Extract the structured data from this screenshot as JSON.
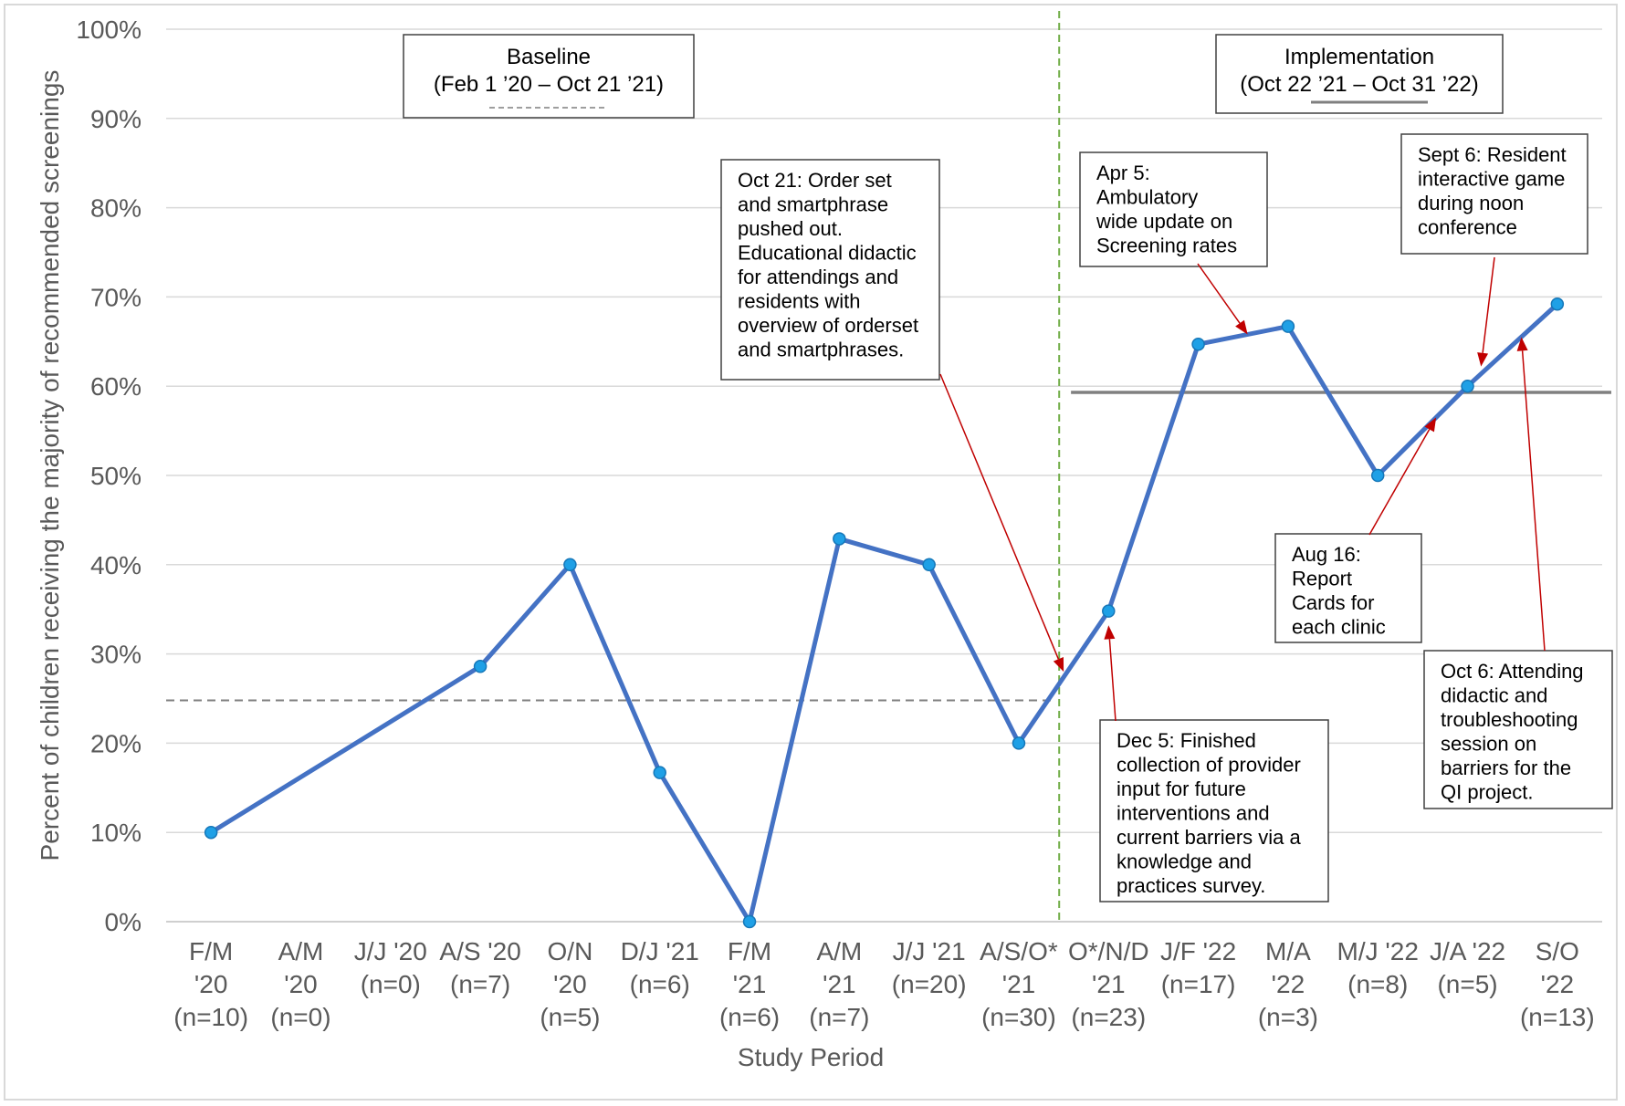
{
  "chart_data": {
    "type": "line",
    "xlabel": "Study Period",
    "ylabel": "Percent of children receiving the majority of recommended screenings",
    "ylim": [
      0,
      100
    ],
    "yticks": [
      "0%",
      "10%",
      "20%",
      "30%",
      "40%",
      "50%",
      "60%",
      "70%",
      "80%",
      "90%",
      "100%"
    ],
    "categories": [
      [
        "F/M",
        "'20",
        "(n=10)"
      ],
      [
        "A/M",
        "'20",
        "(n=0)"
      ],
      [
        "J/J '20",
        "(n=0)"
      ],
      [
        "A/S '20",
        "(n=7)"
      ],
      [
        "O/N",
        "'20",
        "(n=5)"
      ],
      [
        "D/J '21",
        "(n=6)"
      ],
      [
        "F/M",
        "'21",
        "(n=6)"
      ],
      [
        "A/M",
        "'21",
        "(n=7)"
      ],
      [
        "J/J '21",
        "(n=20)"
      ],
      [
        "A/S/O*",
        "'21",
        "(n=30)"
      ],
      [
        "O*/N/D",
        "'21",
        "(n=23)"
      ],
      [
        "J/F '22",
        "(n=17)"
      ],
      [
        "M/A",
        "'22",
        "(n=3)"
      ],
      [
        "M/J '22",
        "(n=8)"
      ],
      [
        "J/A '22",
        "(n=5)"
      ],
      [
        "S/O",
        "'22",
        "(n=13)"
      ]
    ],
    "series": [
      {
        "points": [
          {
            "i": 0,
            "v": 10
          },
          {
            "i": 3,
            "v": 28.6
          },
          {
            "i": 4,
            "v": 40
          },
          {
            "i": 5,
            "v": 16.7
          },
          {
            "i": 6,
            "v": 0
          },
          {
            "i": 7,
            "v": 42.9
          },
          {
            "i": 8,
            "v": 40
          },
          {
            "i": 9,
            "v": 20
          },
          {
            "i": 10,
            "v": 34.8
          },
          {
            "i": 11,
            "v": 64.7
          },
          {
            "i": 12,
            "v": 66.7
          },
          {
            "i": 13,
            "v": 50
          },
          {
            "i": 14,
            "v": 60
          },
          {
            "i": 15,
            "v": 69.2
          }
        ],
        "color": "#4472C4",
        "marker_color": "#1FA0E6"
      }
    ],
    "baseline_median": {
      "value": 24.8,
      "from_index": -0.5,
      "to_index": 9.4,
      "style": "dashed",
      "color": "#7F7F7F"
    },
    "implementation_median": {
      "value": 59.3,
      "from_index": 9.5,
      "to_index": 15.5,
      "style": "solid",
      "color": "#808080"
    },
    "phase_divider": {
      "at_index": 9.45,
      "style": "dashed",
      "color": "#70AD47"
    },
    "grid": true,
    "periods": [
      {
        "id": "baseline",
        "lines": [
          "Baseline",
          "(Feb 1 ’20 – Oct 21 ’21)"
        ]
      },
      {
        "id": "implementation",
        "lines": [
          "Implementation",
          "(Oct 22 ’21 – Oct 31 ’22)"
        ]
      }
    ],
    "annotations": [
      {
        "id": "oct21",
        "lines": [
          "Oct 21: Order set",
          "and smartphrase",
          "pushed out.",
          "Educational didactic",
          "for attendings and",
          "residents with",
          "overview of orderset",
          "and smartphrases."
        ],
        "points_to": {
          "i": 9.5,
          "v": 28
        }
      },
      {
        "id": "apr5",
        "lines": [
          "Apr 5:",
          "Ambulatory",
          "wide update on",
          "Screening rates"
        ],
        "points_to": {
          "i": 11.55,
          "v": 65.8
        }
      },
      {
        "id": "sept6",
        "lines": [
          "Sept 6: Resident",
          "interactive game",
          "during noon",
          "conference"
        ],
        "points_to": {
          "i": 14.15,
          "v": 62.2
        }
      },
      {
        "id": "dec5",
        "lines": [
          "Dec 5: Finished",
          "collection of provider",
          "input for future",
          "interventions and",
          "current barriers via a",
          "knowledge and",
          "practices survey."
        ],
        "points_to": {
          "i": 10.0,
          "v": 33.2
        }
      },
      {
        "id": "aug16",
        "lines": [
          "Aug 16:",
          "Report",
          "Cards for",
          "each clinic"
        ],
        "points_to": {
          "i": 13.65,
          "v": 56.5
        }
      },
      {
        "id": "oct6",
        "lines": [
          "Oct 6: Attending",
          "didactic and",
          "troubleshooting",
          "session on",
          "barriers for the",
          "QI project."
        ],
        "points_to": {
          "i": 14.6,
          "v": 65.5
        }
      }
    ]
  }
}
